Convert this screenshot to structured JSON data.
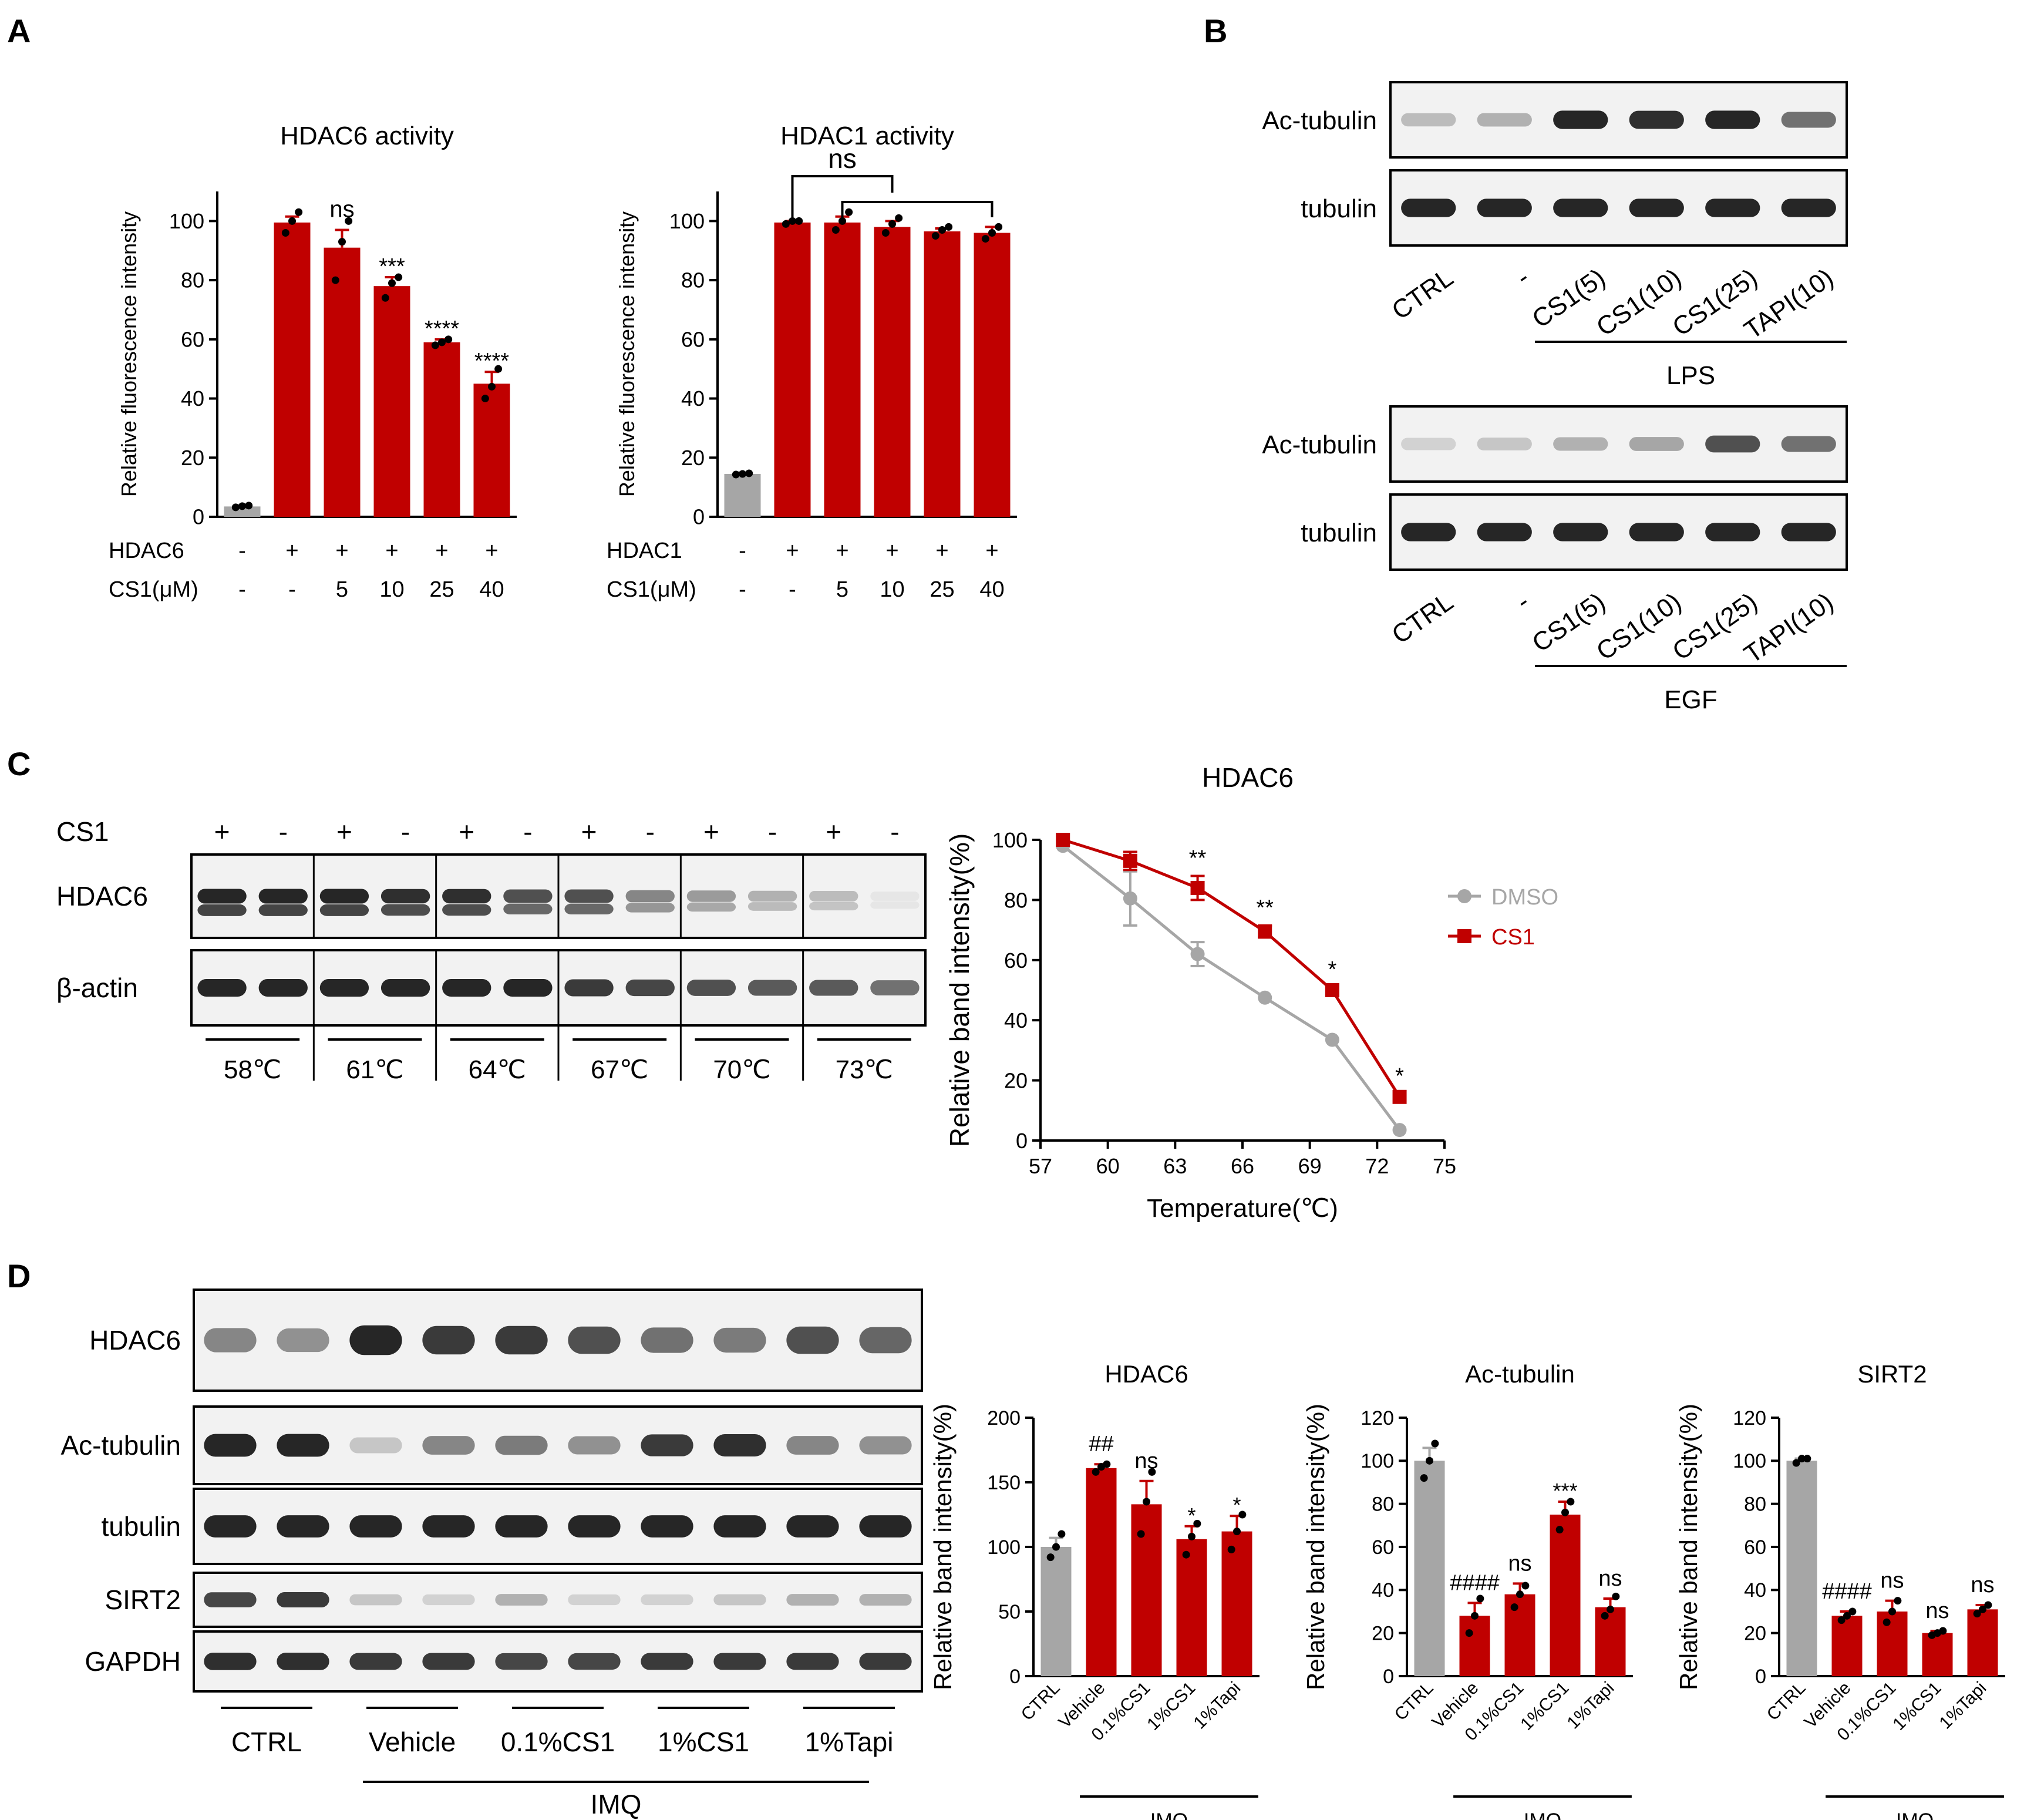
{
  "panels": {
    "A": "A",
    "B": "B",
    "C": "C",
    "D": "D"
  },
  "colors": {
    "red": "#c00000",
    "gray": "#a6a6a6",
    "blot_bg": "#f2f2f2",
    "band": "#1a1a1a"
  },
  "chart_data": [
    {
      "id": "A1",
      "type": "bar",
      "title": "HDAC6 activity",
      "ylabel": "Relative fluorescence intensity",
      "ylim": [
        0,
        110
      ],
      "yticks": [
        0,
        20,
        40,
        60,
        80,
        100
      ],
      "values": [
        3.5,
        99.5,
        91,
        78,
        59,
        45
      ],
      "errors": [
        0.5,
        2,
        6,
        3,
        1,
        4
      ],
      "points": [
        [
          3.2,
          3.6,
          3.8
        ],
        [
          96,
          100,
          103
        ],
        [
          80,
          93,
          100
        ],
        [
          74,
          79,
          81
        ],
        [
          58,
          59,
          60
        ],
        [
          40,
          44,
          50
        ]
      ],
      "colors": [
        "gray",
        "red",
        "red",
        "red",
        "red",
        "red"
      ],
      "sig": [
        "",
        "",
        "ns",
        "***",
        "****",
        "****"
      ],
      "rows": [
        {
          "label": "HDAC6",
          "values": [
            "-",
            "+",
            "+",
            "+",
            "+",
            "+"
          ]
        },
        {
          "label": "CS1(μM)",
          "values": [
            "-",
            "-",
            "5",
            "10",
            "25",
            "40"
          ]
        }
      ]
    },
    {
      "id": "A2",
      "type": "bar",
      "title": "HDAC1 activity",
      "ylabel": "Relative fluorescence intensity",
      "ylim": [
        0,
        110
      ],
      "yticks": [
        0,
        20,
        40,
        60,
        80,
        100
      ],
      "values": [
        14.5,
        99.5,
        99.5,
        98,
        96.5,
        96
      ],
      "errors": [
        0.5,
        0.5,
        2,
        2,
        1,
        2
      ],
      "points": [
        [
          14.3,
          14.5,
          14.7
        ],
        [
          99,
          100,
          100
        ],
        [
          97,
          100,
          103
        ],
        [
          96,
          99,
          101
        ],
        [
          95,
          97,
          98
        ],
        [
          94,
          96,
          98
        ]
      ],
      "colors": [
        "gray",
        "red",
        "red",
        "red",
        "red",
        "red"
      ],
      "sig": [
        "",
        "",
        "",
        "",
        "",
        ""
      ],
      "bracket_label": "ns",
      "rows": [
        {
          "label": "HDAC1",
          "values": [
            "-",
            "+",
            "+",
            "+",
            "+",
            "+"
          ]
        },
        {
          "label": "CS1(μM)",
          "values": [
            "-",
            "-",
            "5",
            "10",
            "25",
            "40"
          ]
        }
      ]
    },
    {
      "id": "C",
      "type": "line",
      "title": "HDAC6",
      "xlabel": "Temperature(℃)",
      "ylabel": "Relative band intensity(%)",
      "xlim": [
        57,
        75
      ],
      "ylim": [
        0,
        100
      ],
      "xticks": [
        57,
        60,
        63,
        66,
        69,
        72,
        75
      ],
      "yticks": [
        0,
        20,
        40,
        60,
        80,
        100
      ],
      "series": [
        {
          "name": "DMSO",
          "color": "gray",
          "marker": "circle",
          "x": [
            58,
            61,
            64,
            67,
            70,
            73
          ],
          "y": [
            98,
            80.5,
            62,
            47.5,
            33.5,
            3.5
          ],
          "err": [
            1,
            9,
            4,
            1,
            1,
            0.5
          ]
        },
        {
          "name": "CS1",
          "color": "red",
          "marker": "square",
          "x": [
            58,
            61,
            64,
            67,
            70,
            73
          ],
          "y": [
            100,
            93,
            84,
            69.5,
            50,
            14.5
          ],
          "err": [
            0.5,
            3,
            4,
            2,
            1,
            1
          ]
        }
      ],
      "sig": [
        {
          "x": 64,
          "label": "**"
        },
        {
          "x": 67,
          "label": "**"
        },
        {
          "x": 70,
          "label": "*"
        },
        {
          "x": 73,
          "label": "*"
        }
      ]
    },
    {
      "id": "D1",
      "type": "bar",
      "title": "HDAC6",
      "ylabel": "Relative band intensity(%)",
      "ylim": [
        0,
        200
      ],
      "yticks": [
        0,
        50,
        100,
        150,
        200
      ],
      "categories": [
        "CTRL",
        "Vehicle",
        "0.1%CS1",
        "1%CS1",
        "1%Tapi"
      ],
      "values": [
        100,
        161,
        133,
        106,
        112
      ],
      "errors": [
        7,
        3,
        18,
        10,
        12
      ],
      "points": [
        [
          92,
          100,
          110
        ],
        [
          158,
          162,
          164
        ],
        [
          110,
          135,
          158
        ],
        [
          94,
          108,
          118
        ],
        [
          98,
          112,
          125
        ]
      ],
      "colors": [
        "gray",
        "red",
        "red",
        "red",
        "red"
      ],
      "sig": [
        "",
        "##",
        "ns",
        "*",
        "*"
      ],
      "group_label": "IMQ"
    },
    {
      "id": "D2",
      "type": "bar",
      "title": "Ac-tubulin",
      "ylabel": "Relative band intensity(%)",
      "ylim": [
        0,
        120
      ],
      "yticks": [
        0,
        20,
        40,
        60,
        80,
        100,
        120
      ],
      "categories": [
        "CTRL",
        "Vehicle",
        "0.1%CS1",
        "1%CS1",
        "1%Tapi"
      ],
      "values": [
        100,
        28,
        38,
        75,
        32
      ],
      "errors": [
        6,
        6,
        5,
        6,
        4
      ],
      "points": [
        [
          92,
          100,
          108
        ],
        [
          20,
          28,
          36
        ],
        [
          32,
          38,
          42
        ],
        [
          68,
          76,
          81
        ],
        [
          28,
          31,
          37
        ]
      ],
      "colors": [
        "gray",
        "red",
        "red",
        "red",
        "red"
      ],
      "sig": [
        "",
        "####",
        "ns",
        "***",
        "ns"
      ],
      "group_label": "IMQ"
    },
    {
      "id": "D3",
      "type": "bar",
      "title": "SIRT2",
      "ylabel": "Relative band intensity(%)",
      "ylim": [
        0,
        120
      ],
      "yticks": [
        0,
        20,
        40,
        60,
        80,
        100,
        120
      ],
      "categories": [
        "CTRL",
        "Vehicle",
        "0.1%CS1",
        "1%CS1",
        "1%Tapi"
      ],
      "values": [
        100,
        28,
        30,
        20,
        31
      ],
      "errors": [
        1,
        2,
        5,
        1,
        2
      ],
      "points": [
        [
          99,
          101,
          101
        ],
        [
          26,
          28,
          30
        ],
        [
          25,
          30,
          35
        ],
        [
          19,
          20,
          21
        ],
        [
          29,
          31,
          33
        ]
      ],
      "colors": [
        "gray",
        "red",
        "red",
        "red",
        "red"
      ],
      "sig": [
        "",
        "####",
        "ns",
        "ns",
        "ns"
      ],
      "group_label": "IMQ"
    }
  ],
  "blots": {
    "B_top": {
      "rows": [
        "Ac-tubulin",
        "tubulin"
      ],
      "lanes": [
        "CTRL",
        "-",
        "CS1(5)",
        "CS1(10)",
        "CS1(25)",
        "TAPI(10)"
      ],
      "treatment": "LPS",
      "intensity": [
        [
          0.25,
          0.3,
          0.95,
          0.9,
          0.95,
          0.6
        ],
        [
          0.95,
          0.95,
          0.95,
          0.95,
          0.95,
          0.95
        ]
      ]
    },
    "B_bottom": {
      "rows": [
        "Ac-tubulin",
        "tubulin"
      ],
      "lanes": [
        "CTRL",
        "-",
        "CS1(5)",
        "CS1(10)",
        "CS1(25)",
        "TAPI(10)"
      ],
      "treatment": "EGF",
      "intensity": [
        [
          0.15,
          0.2,
          0.3,
          0.35,
          0.75,
          0.6
        ],
        [
          0.95,
          0.95,
          0.95,
          0.95,
          0.95,
          0.95
        ]
      ]
    },
    "C": {
      "treatment_label": "CS1",
      "lane_signs": [
        "+",
        "-",
        "+",
        "-",
        "+",
        "-",
        "+",
        "-",
        "+",
        "-",
        "+",
        "-"
      ],
      "rows": [
        "HDAC6",
        "β-actin"
      ],
      "temperatures": [
        "58℃",
        "61℃",
        "64℃",
        "67℃",
        "70℃",
        "73℃"
      ],
      "intensity": [
        [
          0.95,
          0.95,
          0.95,
          0.9,
          0.9,
          0.75,
          0.75,
          0.5,
          0.4,
          0.3,
          0.25,
          0.05
        ],
        [
          0.95,
          0.95,
          0.95,
          0.95,
          0.95,
          0.95,
          0.85,
          0.8,
          0.75,
          0.7,
          0.7,
          0.6
        ]
      ]
    },
    "D": {
      "rows": [
        "HDAC6",
        "Ac-tubulin",
        "tubulin",
        "SIRT2",
        "GAPDH"
      ],
      "groups": [
        "CTRL",
        "Vehicle",
        "0.1%CS1",
        "1%CS1",
        "1%Tapi"
      ],
      "treatment": "IMQ",
      "intensity": [
        [
          0.5,
          0.45,
          0.95,
          0.85,
          0.85,
          0.75,
          0.6,
          0.55,
          0.75,
          0.65
        ],
        [
          0.95,
          0.95,
          0.2,
          0.5,
          0.55,
          0.45,
          0.85,
          0.9,
          0.5,
          0.45
        ],
        [
          0.95,
          0.95,
          0.95,
          0.95,
          0.95,
          0.95,
          0.95,
          0.95,
          0.95,
          0.95
        ],
        [
          0.8,
          0.85,
          0.2,
          0.15,
          0.3,
          0.15,
          0.15,
          0.2,
          0.3,
          0.3
        ],
        [
          0.9,
          0.9,
          0.85,
          0.85,
          0.8,
          0.8,
          0.85,
          0.85,
          0.85,
          0.85
        ]
      ]
    }
  }
}
